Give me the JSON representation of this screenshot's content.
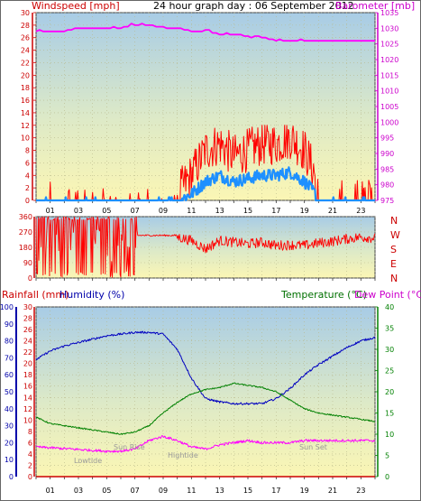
{
  "header": {
    "left_label": "Windspeed [mph]",
    "title": "24 hour graph day : 06 September 2012",
    "right_label": "Barometer [mb]"
  },
  "colors": {
    "wind": "#ff0000",
    "gust_avg": "#1e90ff",
    "barometer": "#ff00ff",
    "temperature": "#008000",
    "humidity": "#0000c0",
    "dewpoint": "#ff00ff",
    "rain": "#cc0000"
  },
  "x_axis": {
    "tick_labels": [
      "01",
      "03",
      "05",
      "07",
      "09",
      "11",
      "13",
      "15",
      "17",
      "19",
      "21",
      "23"
    ]
  },
  "wind_panel": {
    "y_ticks": [
      0,
      2,
      4,
      6,
      8,
      10,
      12,
      14,
      16,
      18,
      20,
      22,
      24,
      26,
      28,
      30
    ],
    "baro_ticks": [
      975,
      980,
      985,
      990,
      995,
      1000,
      1005,
      1010,
      1015,
      1020,
      1025,
      1030,
      1035
    ]
  },
  "dir_panel": {
    "y_ticks": [
      0,
      90,
      180,
      270,
      360
    ],
    "compass": [
      "N",
      "W",
      "S",
      "E",
      "N"
    ]
  },
  "lower_panel": {
    "rain_label": "Rainfall (mm)",
    "humidity_label": "Humidity (%)",
    "temp_label": "Temperature (°C)",
    "dew_label": "Dew Point (°C)",
    "humidity_ticks": [
      0,
      10,
      20,
      30,
      40,
      50,
      60,
      70,
      80,
      90,
      100
    ],
    "rain_ticks": [
      0,
      2,
      4,
      6,
      8,
      10,
      12,
      14,
      16,
      18,
      20,
      22,
      24,
      26,
      28,
      30
    ],
    "temp_ticks": [
      0,
      5,
      10,
      15,
      20,
      25,
      30,
      35,
      40
    ],
    "annotations": [
      "Lowtide",
      "Sun Rise",
      "Hightide",
      "Sun Set"
    ]
  },
  "chart_data": [
    {
      "type": "line",
      "title": "24 hour graph day : 06 September 2012",
      "xlabel": "",
      "ylabel": "Windspeed [mph]",
      "ylim": [
        0,
        30
      ],
      "y2label": "Barometer [mb]",
      "y2lim": [
        975,
        1035
      ],
      "x_hours": [
        0,
        1,
        2,
        3,
        4,
        5,
        6,
        7,
        8,
        9,
        10,
        11,
        12,
        13,
        14,
        15,
        16,
        17,
        18,
        19,
        20,
        21,
        22,
        23,
        24
      ],
      "series": [
        {
          "name": "Windspeed [mph]",
          "axis": "left",
          "values": [
            1,
            2,
            0,
            1,
            0,
            0,
            0,
            0,
            0,
            0,
            0,
            3,
            7,
            8,
            6,
            7,
            8,
            8,
            9,
            7,
            2,
            1,
            2,
            1,
            2
          ]
        },
        {
          "axis": "left",
          "values": [
            0.5,
            0.5,
            0,
            0,
            0,
            0,
            0,
            0,
            0,
            0,
            0,
            1,
            3,
            4,
            3,
            3.5,
            4,
            4,
            4.5,
            3,
            0.5,
            0.5,
            0.5,
            0.5,
            0.5
          ]
        },
        {
          "name": "Barometer [mb]",
          "axis": "right",
          "values": [
            1029,
            1029,
            1029,
            1030,
            1030,
            1030,
            1030,
            1031,
            1031,
            1030,
            1030,
            1029,
            1029,
            1028,
            1028,
            1027,
            1027,
            1026,
            1026,
            1026,
            1026,
            1026,
            1026,
            1026,
            1026
          ]
        }
      ]
    },
    {
      "type": "line",
      "ylabel": "",
      "ylim": [
        0,
        360
      ],
      "x_hours": [
        0,
        1,
        2,
        3,
        4,
        5,
        6,
        7,
        8,
        9,
        10,
        11,
        12,
        13,
        14,
        15,
        16,
        17,
        18,
        19,
        20,
        21,
        22,
        23,
        24
      ],
      "series": [
        {
          "name": "Wind direction",
          "values": [
            300,
            160,
            320,
            180,
            340,
            120,
            360,
            240,
            250,
            250,
            240,
            220,
            170,
            220,
            210,
            200,
            210,
            190,
            195,
            190,
            205,
            215,
            230,
            240,
            235
          ]
        }
      ]
    },
    {
      "type": "line",
      "x_hours": [
        0,
        1,
        2,
        3,
        4,
        5,
        6,
        7,
        8,
        9,
        10,
        11,
        12,
        13,
        14,
        15,
        16,
        17,
        18,
        19,
        20,
        21,
        22,
        23,
        24
      ],
      "series": [
        {
          "name": "Humidity (%)",
          "axis": "humidity",
          "ylim": [
            0,
            100
          ],
          "values": [
            69,
            74,
            77,
            79,
            81,
            83,
            84,
            85,
            85,
            84,
            75,
            58,
            46,
            44,
            43,
            43,
            43,
            46,
            52,
            60,
            66,
            71,
            76,
            80,
            82
          ]
        },
        {
          "name": "Temperature (°C)",
          "axis": "temp",
          "ylim": [
            0,
            40
          ],
          "values": [
            14,
            12.5,
            12,
            11.5,
            11,
            10.5,
            10,
            10.5,
            12,
            15,
            17.5,
            19.5,
            20.5,
            21,
            22,
            21.5,
            21,
            20,
            18,
            16,
            15,
            14.5,
            14,
            13.5,
            13
          ]
        },
        {
          "name": "Dew Point (°C)",
          "axis": "temp",
          "ylim": [
            0,
            40
          ],
          "values": [
            7,
            6.8,
            6.6,
            6.4,
            6.2,
            6.0,
            6.0,
            6.5,
            8.5,
            9.5,
            8.5,
            7,
            6.5,
            7.5,
            8,
            8.5,
            8,
            8,
            8,
            8.5,
            8.5,
            8.5,
            8.5,
            8.5,
            8.5
          ]
        },
        {
          "name": "Rainfall (mm)",
          "axis": "rain",
          "ylim": [
            0,
            30
          ],
          "values": [
            0,
            0,
            0,
            0,
            0,
            0,
            0,
            0,
            0,
            0,
            0,
            0,
            0,
            0,
            0,
            0,
            0,
            0,
            0,
            0,
            0,
            0,
            0,
            0,
            0
          ]
        }
      ]
    }
  ]
}
